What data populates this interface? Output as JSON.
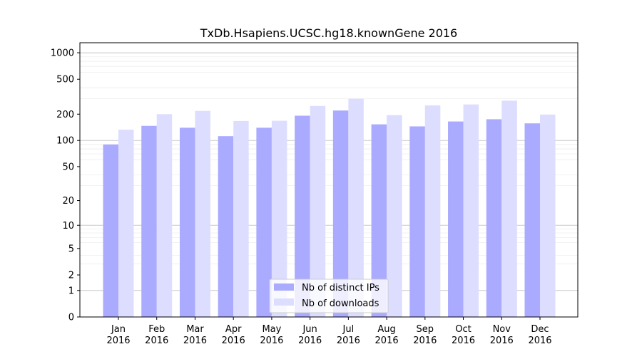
{
  "chart_data": {
    "type": "bar",
    "title": "TxDb.Hsapiens.UCSC.hg18.knownGene 2016",
    "xlabel": "",
    "ylabel": "",
    "yscale": "log1p",
    "ylim": [
      0,
      1300
    ],
    "yticks": [
      0,
      1,
      2,
      5,
      10,
      20,
      50,
      100,
      200,
      500,
      1000
    ],
    "categories": [
      [
        "Jan",
        "2016"
      ],
      [
        "Feb",
        "2016"
      ],
      [
        "Mar",
        "2016"
      ],
      [
        "Apr",
        "2016"
      ],
      [
        "May",
        "2016"
      ],
      [
        "Jun",
        "2016"
      ],
      [
        "Jul",
        "2016"
      ],
      [
        "Aug",
        "2016"
      ],
      [
        "Sep",
        "2016"
      ],
      [
        "Oct",
        "2016"
      ],
      [
        "Nov",
        "2016"
      ],
      [
        "Dec",
        "2016"
      ]
    ],
    "series": [
      {
        "name": "Nb of distinct IPs",
        "color": "#aaaaff",
        "values": [
          90,
          147,
          140,
          112,
          140,
          192,
          220,
          153,
          145,
          165,
          175,
          157
        ]
      },
      {
        "name": "Nb of downloads",
        "color": "#ddddff",
        "values": [
          133,
          200,
          218,
          167,
          168,
          248,
          300,
          195,
          252,
          258,
          285,
          198
        ]
      }
    ],
    "legend_position": "bottom-center",
    "grid": true
  }
}
